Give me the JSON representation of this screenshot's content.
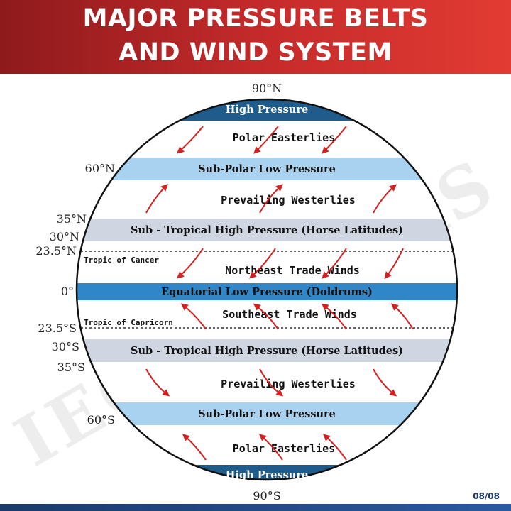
{
  "header": {
    "title_line1": "MAJOR PRESSURE BELTS",
    "title_line2": "AND WIND SYSTEM"
  },
  "watermark": "IEC  NOV IAS",
  "latitudes": {
    "n90": "90°N",
    "n60": "60°N",
    "n35": "35°N",
    "n30": "30°N",
    "n23": "23.5°N",
    "eq": "0°",
    "s23": "23.5°S",
    "s30": "30°S",
    "s35": "35°S",
    "s60": "60°S",
    "s90": "90°S"
  },
  "belts": {
    "high_north": "High Pressure",
    "subpolar_north": "Sub-Polar Low Pressure",
    "subtropical_north": "Sub - Tropical High Pressure  (Horse Latitudes)",
    "equatorial": "Equatorial Low   Pressure (Doldrums)",
    "subtropical_south": "Sub - Tropical High  Pressure (Horse Latitudes)",
    "subpolar_south": "Sub-Polar Low Pressure",
    "high_south": "High Pressure"
  },
  "winds": {
    "polar_north": "Polar  Easterlies",
    "westerlies_north": "Prevailing  Westerlies",
    "trade_north": "Northeast  Trade  Winds",
    "trade_south": "Southeast  Trade  Winds",
    "westerlies_south": "Prevailing  Westerlies",
    "polar_south": "Polar  Easterlies"
  },
  "tropics": {
    "cancer": "Tropic of Cancer",
    "capricorn": "Tropic of Capricorn"
  },
  "page_number": "08/08",
  "colors": {
    "header_start": "#8e1a1c",
    "header_end": "#e23b33",
    "dark_band": "#1f5c8c",
    "light_band": "#a9d2f0",
    "gray_band": "#cfd6e2",
    "equator_band": "#2f86c8",
    "arrow": "#d42020"
  }
}
